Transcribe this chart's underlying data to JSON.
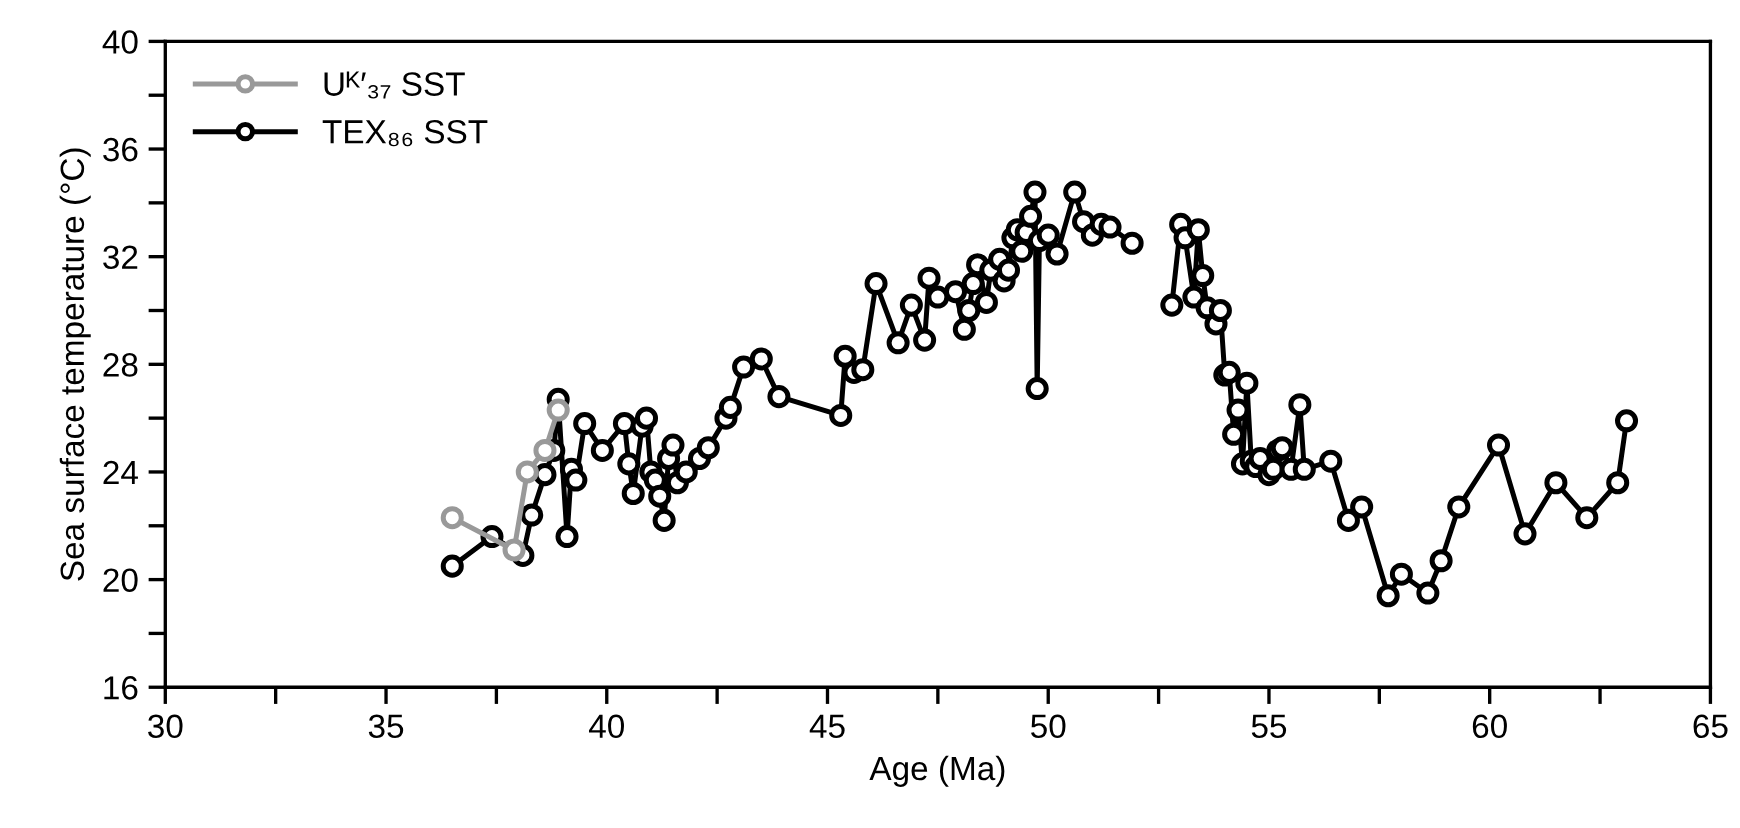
{
  "chart_data": {
    "type": "line",
    "xlabel": "Age (Ma)",
    "ylabel": "Sea surface temperature (°C)",
    "xlim": [
      30,
      65
    ],
    "xticks": [
      30,
      35,
      40,
      45,
      50,
      55,
      60,
      65
    ],
    "ylim": [
      16,
      40
    ],
    "yticks": [
      16,
      20,
      24,
      28,
      32,
      36,
      40
    ],
    "grid": false,
    "legend": "top left",
    "marker": "circle",
    "line_style": "solid",
    "series": [
      {
        "name": "Uᴷ′₃₇ SST",
        "color": "#999999",
        "x": [
          36.5,
          37.9,
          38.2,
          38.6,
          38.9
        ],
        "values": [
          22.3,
          21.1,
          24.0,
          24.8,
          26.3
        ]
      },
      {
        "name": "TEX₈₆ SST",
        "color": "#000000",
        "x": [
          36.5,
          37.4,
          38.1,
          38.3,
          38.6,
          38.8,
          38.9,
          39.1,
          39.2,
          39.3,
          39.5,
          39.9,
          40.4,
          40.5,
          40.6,
          40.8,
          40.9,
          41.0,
          41.1,
          41.2,
          41.3,
          41.4,
          41.5,
          41.6,
          41.8,
          42.1,
          42.3,
          42.7,
          42.8,
          43.1,
          43.5,
          43.9,
          45.3,
          45.4,
          45.6,
          45.8,
          46.1,
          46.6,
          46.9,
          47.2,
          47.3,
          47.5,
          47.9,
          48.1,
          48.2,
          48.3,
          48.4,
          48.6,
          48.7,
          48.9,
          49.0,
          49.1,
          49.2,
          49.3,
          49.4,
          49.5,
          49.6,
          49.7,
          49.75,
          49.8,
          50.0,
          50.2,
          50.6,
          50.8,
          51.0,
          51.2,
          51.4,
          51.9,
          52.3,
          52.8,
          53.0,
          53.1,
          53.3,
          53.4,
          53.5,
          53.6,
          53.8,
          53.9,
          54.0,
          54.1,
          54.2,
          54.3,
          54.4,
          54.5,
          54.6,
          54.7,
          54.8,
          55.0,
          55.1,
          55.2,
          55.3,
          55.5,
          55.7,
          55.8,
          56.4,
          56.8,
          57.1,
          57.7,
          58.0,
          58.6,
          58.9,
          59.3,
          60.2,
          60.8,
          61.5,
          62.2,
          62.9,
          63.1
        ],
        "values": [
          20.5,
          21.6,
          20.9,
          22.4,
          23.9,
          24.8,
          26.7,
          21.6,
          24.1,
          23.7,
          25.8,
          24.8,
          25.8,
          24.3,
          23.2,
          25.7,
          26.0,
          24.0,
          23.7,
          23.1,
          22.2,
          24.5,
          25.0,
          23.6,
          24.0,
          24.5,
          24.9,
          26.0,
          26.4,
          27.9,
          28.2,
          26.8,
          26.1,
          28.3,
          27.7,
          27.8,
          31.0,
          28.8,
          30.2,
          28.9,
          31.2,
          30.5,
          30.7,
          29.3,
          30.0,
          31.0,
          31.7,
          30.3,
          31.5,
          31.9,
          31.1,
          31.5,
          32.7,
          33.0,
          32.2,
          32.9,
          33.5,
          34.4,
          27.1,
          32.6,
          32.8,
          32.1,
          34.4,
          33.3,
          32.8,
          33.2,
          33.1,
          32.5,
          null,
          30.2,
          33.2,
          32.7,
          30.5,
          33.0,
          31.3,
          30.1,
          29.5,
          30.0,
          27.6,
          27.7,
          25.4,
          26.3,
          24.3,
          27.3,
          24.4,
          24.2,
          24.5,
          23.9,
          24.1,
          24.8,
          24.9,
          24.1,
          26.5,
          24.1,
          24.4,
          22.2,
          22.7,
          19.4,
          20.2,
          19.5,
          20.7,
          22.7,
          25.0,
          21.7,
          23.6,
          22.3,
          23.6,
          25.9
        ]
      }
    ]
  }
}
